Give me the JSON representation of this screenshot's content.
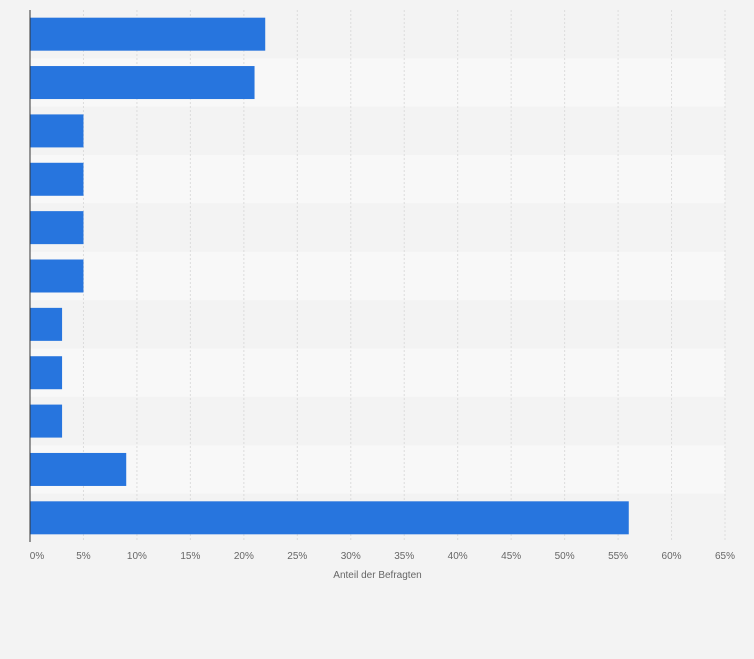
{
  "chart_data": {
    "type": "bar",
    "orientation": "horizontal",
    "title": "",
    "xlabel": "Anteil der Befragten",
    "ylabel": "",
    "categories": [
      "",
      "",
      "",
      "",
      "",
      "",
      "",
      "",
      "",
      "",
      ""
    ],
    "values": [
      22,
      21,
      5,
      5,
      5,
      5,
      3,
      3,
      3,
      9,
      56
    ],
    "xlim": [
      0,
      65
    ],
    "x_ticks": [
      0,
      5,
      10,
      15,
      20,
      25,
      30,
      35,
      40,
      45,
      50,
      55,
      60,
      65
    ],
    "x_tick_labels": [
      "0%",
      "5%",
      "10%",
      "15%",
      "20%",
      "25%",
      "30%",
      "35%",
      "40%",
      "45%",
      "50%",
      "55%",
      "60%",
      "65%"
    ],
    "grid": true,
    "legend": "none",
    "bar_color": "#2775de",
    "band_colors": [
      "#f3f3f3",
      "#f8f8f8"
    ]
  }
}
